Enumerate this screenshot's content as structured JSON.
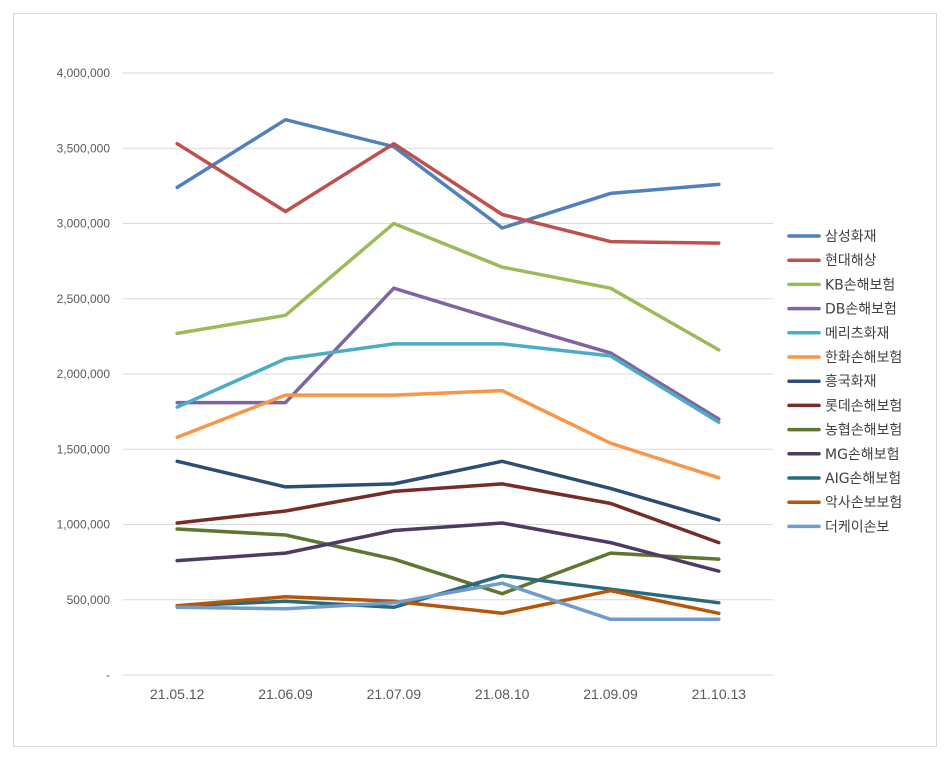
{
  "chart_data": {
    "type": "line",
    "title": "",
    "xlabel": "",
    "ylabel": "",
    "categories": [
      "21.05.12",
      "21.06.09",
      "21.07.09",
      "21.08.10",
      "21.09.09",
      "21.10.13"
    ],
    "ylim": [
      0,
      4000000
    ],
    "yticks": [
      0,
      500000,
      1000000,
      1500000,
      2000000,
      2500000,
      3000000,
      3500000,
      4000000
    ],
    "ytick_labels": [
      "-",
      "500,000",
      "1,000,000",
      "1,500,000",
      "2,000,000",
      "2,500,000",
      "3,000,000",
      "3,500,000",
      "4,000,000"
    ],
    "grid": "horizontal",
    "legend_position": "right",
    "series": [
      {
        "name": "삼성화재",
        "color": "#4f81bd",
        "values": [
          3240000,
          3690000,
          3510000,
          2970000,
          3200000,
          3260000
        ]
      },
      {
        "name": "현대해상",
        "color": "#c0504d",
        "values": [
          3530000,
          3080000,
          3530000,
          3060000,
          2880000,
          2870000
        ]
      },
      {
        "name": "KB손해보험",
        "color": "#9bbb59",
        "values": [
          2270000,
          2390000,
          3000000,
          2710000,
          2570000,
          2160000
        ]
      },
      {
        "name": "DB손해보험",
        "color": "#8064a2",
        "values": [
          1810000,
          1810000,
          2570000,
          2350000,
          2140000,
          1700000
        ]
      },
      {
        "name": "메리츠화재",
        "color": "#4bacc6",
        "values": [
          1780000,
          2100000,
          2200000,
          2200000,
          2120000,
          1680000
        ]
      },
      {
        "name": "한화손해보험",
        "color": "#f79646",
        "values": [
          1580000,
          1860000,
          1860000,
          1890000,
          1540000,
          1310000
        ]
      },
      {
        "name": "흥국화재",
        "color": "#2c4d75",
        "values": [
          1420000,
          1250000,
          1270000,
          1420000,
          1240000,
          1030000
        ]
      },
      {
        "name": "롯데손해보험",
        "color": "#772c2a",
        "values": [
          1010000,
          1090000,
          1220000,
          1270000,
          1140000,
          880000
        ]
      },
      {
        "name": "농협손해보험",
        "color": "#5f7530",
        "values": [
          970000,
          930000,
          770000,
          540000,
          810000,
          770000
        ]
      },
      {
        "name": "MG손해보험",
        "color": "#4d3b62",
        "values": [
          760000,
          810000,
          960000,
          1010000,
          880000,
          690000
        ]
      },
      {
        "name": "AIG손해보험",
        "color": "#276a7c",
        "values": [
          460000,
          490000,
          450000,
          660000,
          570000,
          480000
        ]
      },
      {
        "name": "악사손보보험",
        "color": "#b65708",
        "values": [
          460000,
          520000,
          490000,
          410000,
          560000,
          410000
        ]
      },
      {
        "name": "더케이손보",
        "color": "#729aca",
        "values": [
          450000,
          440000,
          480000,
          610000,
          370000,
          370000
        ]
      }
    ]
  }
}
